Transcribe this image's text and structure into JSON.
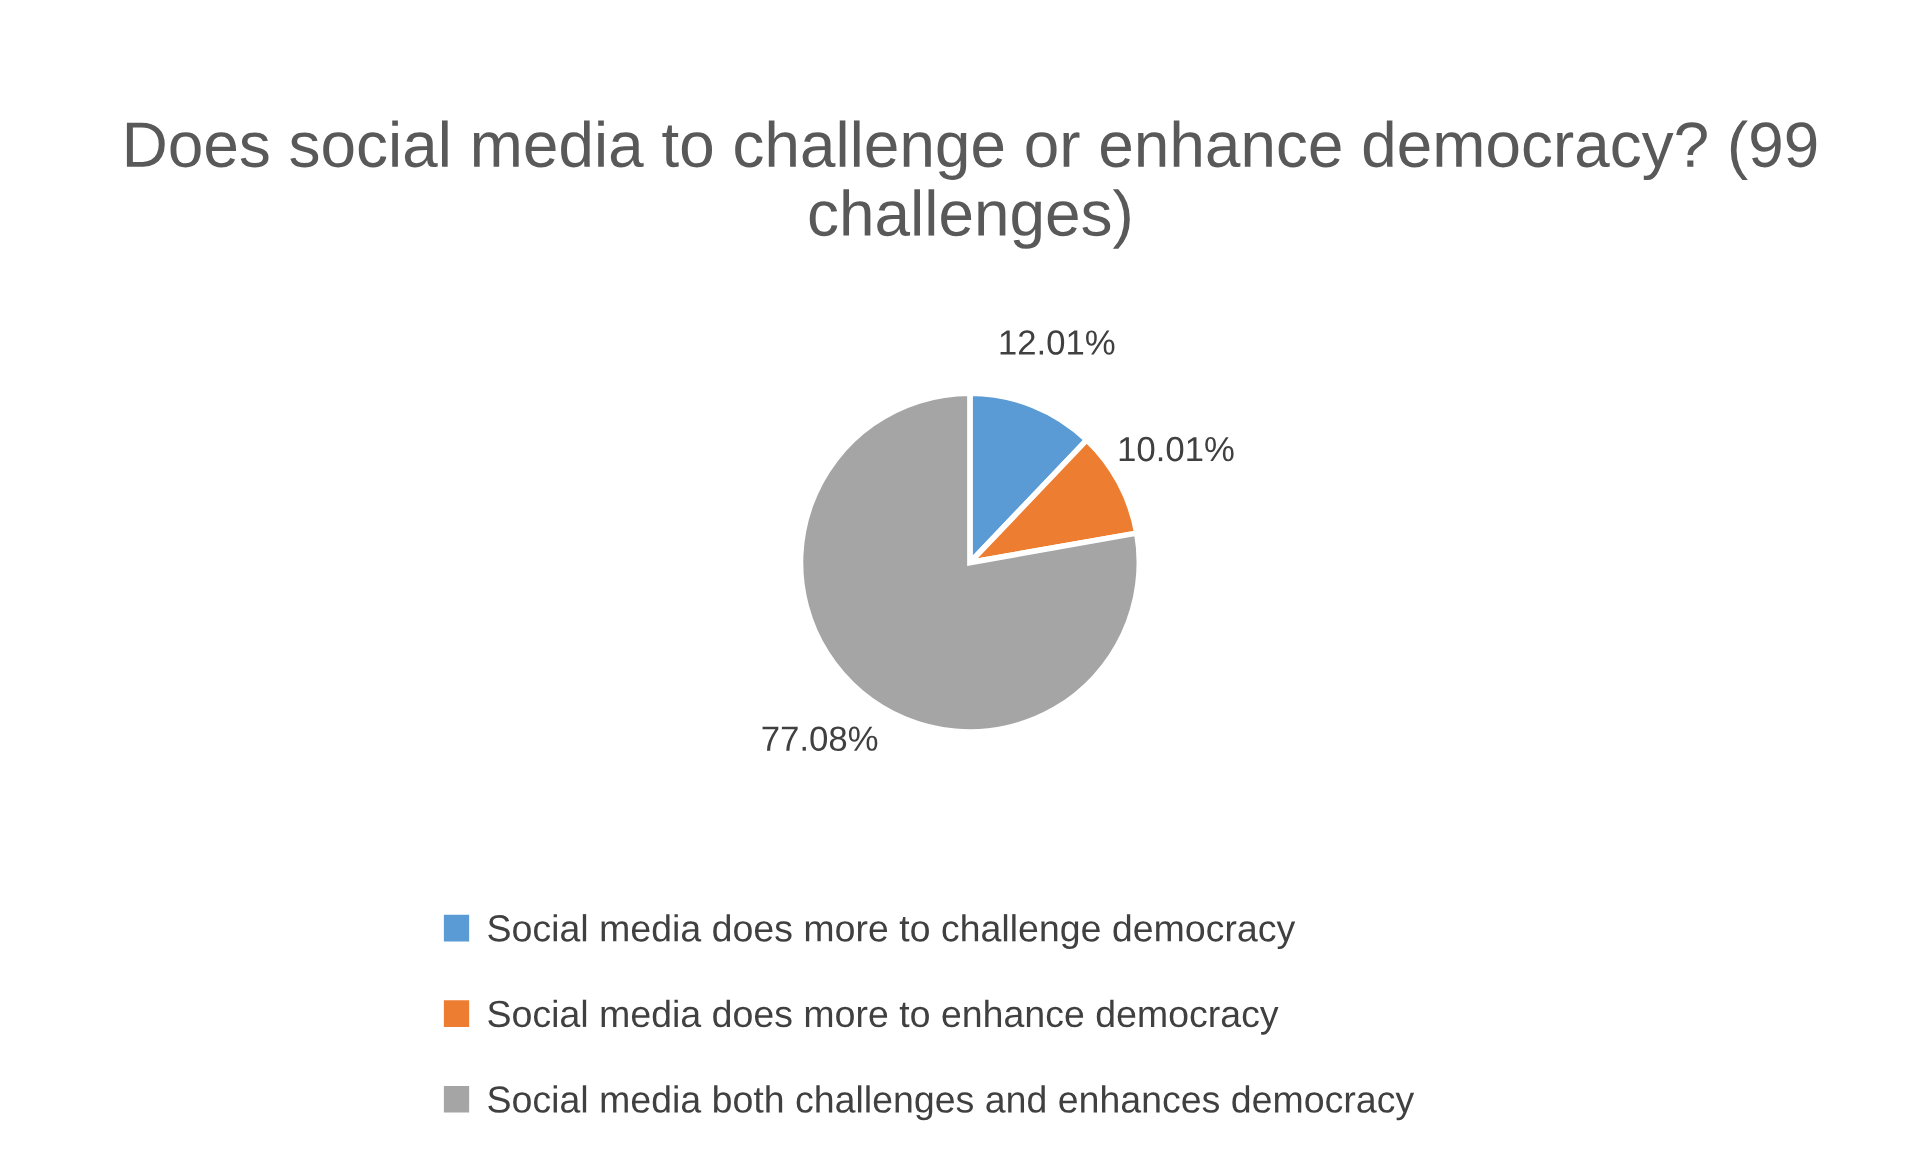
{
  "chart_data": {
    "type": "pie",
    "title": "Does social media to challenge or enhance democracy? (99 challenges)",
    "categories": [
      "Social media does more to challenge democracy",
      "Social media does more to enhance democracy",
      "Social media both challenges and enhances democracy"
    ],
    "values": [
      12.01,
      10.01,
      77.08
    ],
    "colors": [
      "#5b9bd5",
      "#ed7d31",
      "#a5a5a5"
    ],
    "value_labels": [
      "12.01%",
      "10.01%",
      "77.08%"
    ],
    "legend": "bottom"
  }
}
